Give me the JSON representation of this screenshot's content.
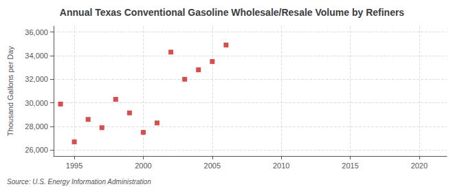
{
  "chart_data": {
    "type": "scatter",
    "title": "Annual Texas Conventional Gasoline Wholesale/Resale Volume by Refiners",
    "ylabel": "Thousand Gallons per Day",
    "annotation": "Source: U.S. Energy Information Administration",
    "x": [
      1994,
      1995,
      1996,
      1997,
      1998,
      1999,
      2000,
      2001,
      2002,
      2003,
      2004,
      2005,
      2006
    ],
    "values": [
      29900,
      26700,
      28600,
      27900,
      30300,
      29150,
      27500,
      28300,
      34300,
      32000,
      32800,
      33500,
      34900
    ],
    "color": "#cc2222",
    "marker": "square",
    "xlim": [
      1993.5,
      2022
    ],
    "ylim": [
      25500,
      36500
    ],
    "xticks": [
      1995,
      2000,
      2005,
      2010,
      2015,
      2020
    ],
    "yticks": [
      {
        "value": 26000,
        "label": "26,000"
      },
      {
        "value": 28000,
        "label": "28,000"
      },
      {
        "value": 30000,
        "label": "30,000"
      },
      {
        "value": 32000,
        "label": "32,000"
      },
      {
        "value": 34000,
        "label": "34,000"
      },
      {
        "value": 36000,
        "label": "36,000"
      }
    ],
    "grid": true
  }
}
